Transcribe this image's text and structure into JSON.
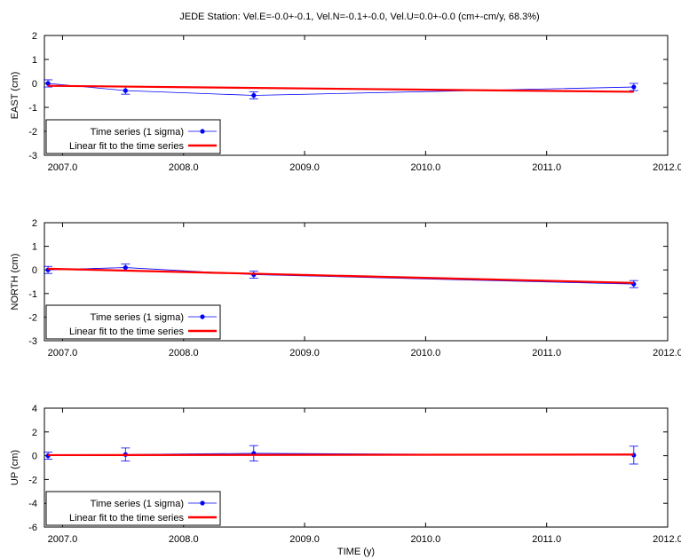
{
  "title": "JEDE Station: Vel.E=-0.0+-0.1, Vel.N=-0.1+-0.0, Vel.U=0.0+-0.0 (cm+-cm/y, 68.3%)",
  "chart_data": [
    {
      "type": "line",
      "ylabel": "EAST (cm)",
      "xlabel": "",
      "xlim": [
        2006.85,
        2012.0
      ],
      "ylim": [
        -3,
        2
      ],
      "yticks": [
        "-3",
        "-2",
        "-1",
        "0",
        "1",
        "2"
      ],
      "xticks": [
        "2007.0",
        "2008.0",
        "2009.0",
        "2010.0",
        "2011.0",
        "2012.0"
      ],
      "legend": [
        "Time series (1 sigma)",
        "Linear fit to the time series"
      ],
      "legend_position": "bottom-left",
      "series": [
        {
          "name": "Time series (1 sigma)",
          "color": "#0000ff",
          "x": [
            2006.88,
            2007.52,
            2008.58,
            2011.72
          ],
          "y": [
            0.0,
            -0.3,
            -0.5,
            -0.15
          ],
          "err": [
            0.15,
            0.15,
            0.15,
            0.15
          ]
        },
        {
          "name": "Linear fit to the time series",
          "color": "#ff0000",
          "x": [
            2006.88,
            2011.72
          ],
          "y": [
            -0.1,
            -0.35
          ]
        }
      ]
    },
    {
      "type": "line",
      "ylabel": "NORTH (cm)",
      "xlabel": "",
      "xlim": [
        2006.85,
        2012.0
      ],
      "ylim": [
        -3,
        2
      ],
      "yticks": [
        "-3",
        "-2",
        "-1",
        "0",
        "1",
        "2"
      ],
      "xticks": [
        "2007.0",
        "2008.0",
        "2009.0",
        "2010.0",
        "2011.0",
        "2012.0"
      ],
      "legend": [
        "Time series (1 sigma)",
        "Linear fit to the time series"
      ],
      "legend_position": "bottom-left",
      "series": [
        {
          "name": "Time series (1 sigma)",
          "color": "#0000ff",
          "x": [
            2006.88,
            2007.52,
            2008.58,
            2011.72
          ],
          "y": [
            0.0,
            0.1,
            -0.2,
            -0.6
          ],
          "err": [
            0.15,
            0.15,
            0.15,
            0.15
          ]
        },
        {
          "name": "Linear fit to the time series",
          "color": "#ff0000",
          "x": [
            2006.88,
            2011.72
          ],
          "y": [
            0.05,
            -0.55
          ]
        }
      ]
    },
    {
      "type": "line",
      "ylabel": "UP (cm)",
      "xlabel": "TIME (y)",
      "xlim": [
        2006.85,
        2012.0
      ],
      "ylim": [
        -6,
        4
      ],
      "yticks": [
        "-6",
        "-4",
        "-2",
        "0",
        "2",
        "4"
      ],
      "xticks": [
        "2007.0",
        "2008.0",
        "2009.0",
        "2010.0",
        "2011.0",
        "2012.0"
      ],
      "legend": [
        "Time series (1 sigma)",
        "Linear fit to the time series"
      ],
      "legend_position": "bottom-left",
      "series": [
        {
          "name": "Time series (1 sigma)",
          "color": "#0000ff",
          "x": [
            2006.88,
            2007.52,
            2008.58,
            2011.72
          ],
          "y": [
            0.0,
            0.1,
            0.2,
            0.05
          ],
          "err": [
            0.3,
            0.55,
            0.65,
            0.75
          ]
        },
        {
          "name": "Linear fit to the time series",
          "color": "#ff0000",
          "x": [
            2006.88,
            2011.72
          ],
          "y": [
            0.05,
            0.1
          ]
        }
      ]
    }
  ]
}
